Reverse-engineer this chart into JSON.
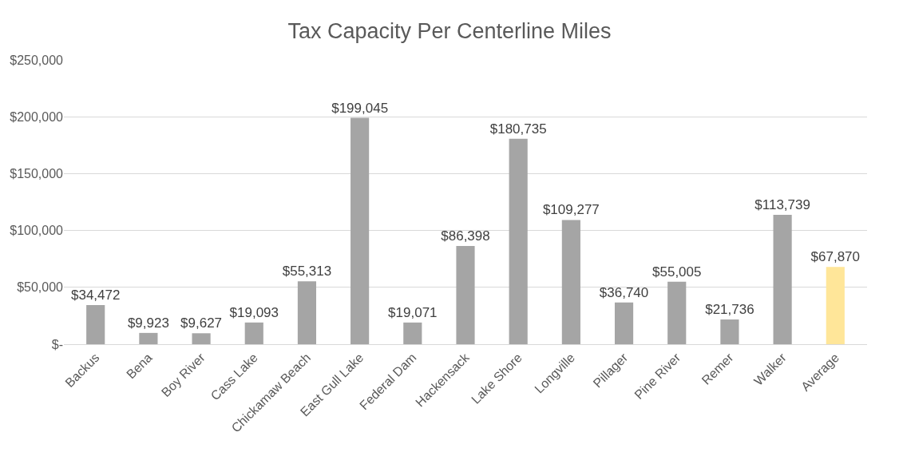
{
  "chart_data": {
    "type": "bar",
    "title": "Tax Capacity Per Centerline Miles",
    "categories": [
      "Backus",
      "Bena",
      "Boy River",
      "Cass Lake",
      "Chickamaw Beach",
      "East Gull Lake",
      "Federal Dam",
      "Hackensack",
      "Lake Shore",
      "Longville",
      "Pillager",
      "Pine River",
      "Remer",
      "Walker",
      "Average"
    ],
    "values": [
      34472,
      9923,
      9627,
      19093,
      55313,
      199045,
      19071,
      86398,
      180735,
      109277,
      36740,
      55005,
      21736,
      113739,
      67870
    ],
    "colors": [
      "#a5a5a5",
      "#a5a5a5",
      "#a5a5a5",
      "#a5a5a5",
      "#a5a5a5",
      "#a5a5a5",
      "#a5a5a5",
      "#a5a5a5",
      "#a5a5a5",
      "#a5a5a5",
      "#a5a5a5",
      "#a5a5a5",
      "#a5a5a5",
      "#a5a5a5",
      "#ffe699"
    ],
    "value_labels": [
      "$34,472",
      "$9,923",
      "$9,627",
      "$19,093",
      "$55,313",
      "$199,045",
      "$19,071",
      "$86,398",
      "$180,735",
      "$109,277",
      "$36,740",
      "$55,005",
      "$21,736",
      "$113,739",
      "$67,870"
    ],
    "ylim": [
      0,
      250000
    ],
    "yticks": [
      {
        "value": 0,
        "label": "$-"
      },
      {
        "value": 50000,
        "label": "$50,000"
      },
      {
        "value": 100000,
        "label": "$100,000"
      },
      {
        "value": 150000,
        "label": "$150,000"
      },
      {
        "value": 200000,
        "label": "$200,000"
      },
      {
        "value": 250000,
        "label": "$250,000"
      }
    ],
    "grid": "y"
  }
}
